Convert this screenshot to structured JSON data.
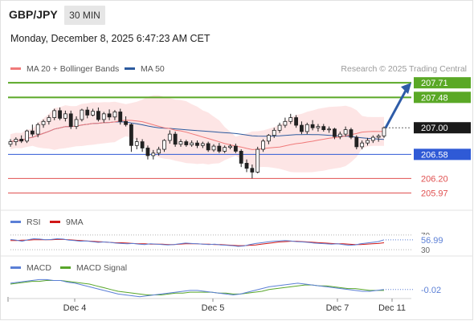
{
  "header": {
    "symbol": "GBP/JPY",
    "interval": "30 MIN",
    "timestamp": "Monday, December 8, 2025 6:47:23 AM CET"
  },
  "legend": {
    "ma20": "MA 20 + Bollinger Bands",
    "ma50": "MA 50",
    "credit": "Research © 2025 Trading Central",
    "rsi": "RSI",
    "rsi_ma": "9MA",
    "macd": "MACD",
    "macd_signal": "MACD Signal"
  },
  "colors": {
    "ma20": "#f07a7a",
    "ma50": "#2c5a9e",
    "bollinger_fill": "#fde2e2",
    "resistance": "#5aa826",
    "pivot": "#2f5ad6",
    "support": "#e05050",
    "arrow": "#2e5ca8",
    "rsi": "#5b7fd6",
    "rsi_ma": "#d01818",
    "macd": "#5b7fd6",
    "macd_signal": "#58a62a"
  },
  "chart_data": {
    "type": "candlestick",
    "x_ticks": [
      "Dec 4",
      "Dec 5",
      "Dec 7",
      "Dec 11"
    ],
    "ylim": [
      205.85,
      207.75
    ],
    "levels": [
      {
        "label": "207.71",
        "value": 207.71,
        "kind": "resistance"
      },
      {
        "label": "207.48",
        "value": 207.48,
        "kind": "resistance"
      },
      {
        "label": "207.00",
        "value": 207.0,
        "kind": "last"
      },
      {
        "label": "206.58",
        "value": 206.58,
        "kind": "pivot"
      },
      {
        "label": "206.20",
        "value": 206.2,
        "kind": "support"
      },
      {
        "label": "205.97",
        "value": 205.97,
        "kind": "support"
      }
    ],
    "candles": [
      [
        206.74,
        206.82,
        206.7,
        206.78
      ],
      [
        206.78,
        206.85,
        206.72,
        206.82
      ],
      [
        206.82,
        206.88,
        206.76,
        206.79
      ],
      [
        206.79,
        206.97,
        206.76,
        206.95
      ],
      [
        206.95,
        207.05,
        206.86,
        206.9
      ],
      [
        206.9,
        207.08,
        206.85,
        207.05
      ],
      [
        207.05,
        207.13,
        207.0,
        207.1
      ],
      [
        207.1,
        207.2,
        207.05,
        207.16
      ],
      [
        207.16,
        207.3,
        207.12,
        207.27
      ],
      [
        207.27,
        207.32,
        207.12,
        207.15
      ],
      [
        207.15,
        207.27,
        207.1,
        207.22
      ],
      [
        207.22,
        207.27,
        206.98,
        207.02
      ],
      [
        207.02,
        207.18,
        206.98,
        207.13
      ],
      [
        207.13,
        207.3,
        207.1,
        207.28
      ],
      [
        207.28,
        207.33,
        207.15,
        207.2
      ],
      [
        207.2,
        207.3,
        207.18,
        207.26
      ],
      [
        207.26,
        207.32,
        207.1,
        207.13
      ],
      [
        207.13,
        207.25,
        207.08,
        207.22
      ],
      [
        207.22,
        207.29,
        207.12,
        207.17
      ],
      [
        207.17,
        207.28,
        207.12,
        207.25
      ],
      [
        207.25,
        207.3,
        207.05,
        207.1
      ],
      [
        207.1,
        207.18,
        207.02,
        207.05
      ],
      [
        207.05,
        207.07,
        206.62,
        206.72
      ],
      [
        206.72,
        206.84,
        206.66,
        206.78
      ],
      [
        206.78,
        206.82,
        206.62,
        206.68
      ],
      [
        206.68,
        206.72,
        206.5,
        206.56
      ],
      [
        206.56,
        206.65,
        206.5,
        206.6
      ],
      [
        206.6,
        206.7,
        206.56,
        206.66
      ],
      [
        206.66,
        206.82,
        206.62,
        206.8
      ],
      [
        206.8,
        206.96,
        206.75,
        206.9
      ],
      [
        206.9,
        206.94,
        206.7,
        206.74
      ],
      [
        206.74,
        206.82,
        206.7,
        206.78
      ],
      [
        206.78,
        206.81,
        206.7,
        206.73
      ],
      [
        206.73,
        206.8,
        206.7,
        206.76
      ],
      [
        206.76,
        206.8,
        206.68,
        206.72
      ],
      [
        206.72,
        206.78,
        206.68,
        206.75
      ],
      [
        206.75,
        206.78,
        206.62,
        206.65
      ],
      [
        206.65,
        206.74,
        206.62,
        206.71
      ],
      [
        206.71,
        206.76,
        206.6,
        206.63
      ],
      [
        206.63,
        206.72,
        206.6,
        206.69
      ],
      [
        206.69,
        206.74,
        206.66,
        206.71
      ],
      [
        206.71,
        206.75,
        206.6,
        206.63
      ],
      [
        206.63,
        206.66,
        206.38,
        206.44
      ],
      [
        206.44,
        206.5,
        206.3,
        206.36
      ],
      [
        206.36,
        206.42,
        206.2,
        206.3
      ],
      [
        206.3,
        206.7,
        206.28,
        206.66
      ],
      [
        206.66,
        206.82,
        206.62,
        206.79
      ],
      [
        206.79,
        206.9,
        206.74,
        206.88
      ],
      [
        206.88,
        207.0,
        206.84,
        206.96
      ],
      [
        206.96,
        207.08,
        206.92,
        207.04
      ],
      [
        207.04,
        207.16,
        207.0,
        207.1
      ],
      [
        207.1,
        207.22,
        207.06,
        207.16
      ],
      [
        207.16,
        207.2,
        207.0,
        207.04
      ],
      [
        207.04,
        207.1,
        206.9,
        206.94
      ],
      [
        206.94,
        207.08,
        206.9,
        207.05
      ],
      [
        207.05,
        207.12,
        206.96,
        207.0
      ],
      [
        207.0,
        207.06,
        206.94,
        207.02
      ],
      [
        207.02,
        207.06,
        206.94,
        206.97
      ],
      [
        206.97,
        207.02,
        206.92,
        206.98
      ],
      [
        206.98,
        207.0,
        206.82,
        206.86
      ],
      [
        206.86,
        206.94,
        206.82,
        206.9
      ],
      [
        206.9,
        207.02,
        206.86,
        206.97
      ],
      [
        206.97,
        207.0,
        206.82,
        206.85
      ],
      [
        206.85,
        206.88,
        206.66,
        206.7
      ],
      [
        206.7,
        206.8,
        206.66,
        206.76
      ],
      [
        206.76,
        206.84,
        206.72,
        206.8
      ],
      [
        206.8,
        206.88,
        206.76,
        206.85
      ],
      [
        206.85,
        206.9,
        206.78,
        206.87
      ],
      [
        206.87,
        207.02,
        206.84,
        207.0
      ]
    ],
    "rsi_range": [
      30,
      70
    ],
    "rsi_labels": [
      "70",
      "30"
    ],
    "rsi_last": "56.99",
    "rsi": [
      58,
      56,
      53,
      57,
      60,
      59,
      57,
      58,
      60,
      59,
      56,
      55,
      53,
      54,
      52,
      50,
      51,
      50,
      48,
      47,
      46,
      47,
      45,
      44,
      46,
      45,
      44,
      43,
      44,
      46,
      48,
      47,
      46,
      45,
      44,
      45,
      43,
      42,
      41,
      39,
      40,
      44,
      47,
      49,
      51,
      53,
      54,
      55,
      54,
      52,
      51,
      50,
      48,
      47,
      46,
      45,
      46,
      44,
      42,
      43,
      46,
      48,
      50,
      52,
      57
    ],
    "rsi_ma": [
      55,
      55,
      56,
      56,
      57,
      57,
      57,
      57,
      58,
      58,
      57,
      56,
      55,
      54,
      53,
      52,
      51,
      50,
      49,
      49,
      48,
      47,
      46,
      46,
      45,
      45,
      45,
      44,
      44,
      45,
      46,
      46,
      46,
      45,
      45,
      44,
      44,
      43,
      42,
      41,
      41,
      42,
      43,
      45,
      47,
      49,
      51,
      52,
      53,
      53,
      52,
      51,
      50,
      49,
      48,
      47,
      46,
      46,
      45,
      44,
      44,
      45,
      46,
      47,
      49
    ],
    "macd_last": "-0.02",
    "macd": [
      0.05,
      0.06,
      0.07,
      0.08,
      0.09,
      0.09,
      0.08,
      0.08,
      0.06,
      0.05,
      0.03,
      0.01,
      -0.01,
      -0.03,
      -0.05,
      -0.07,
      -0.08,
      -0.09,
      -0.1,
      -0.09,
      -0.08,
      -0.07,
      -0.06,
      -0.05,
      -0.04,
      -0.03,
      -0.03,
      -0.04,
      -0.05,
      -0.06,
      -0.07,
      -0.08,
      -0.07,
      -0.05,
      -0.03,
      -0.01,
      0.01,
      0.02,
      0.03,
      0.04,
      0.05,
      0.04,
      0.03,
      0.02,
      0.01,
      0.0,
      -0.01,
      -0.02,
      -0.03,
      -0.04,
      -0.04,
      -0.03,
      -0.02
    ],
    "macd_signal": [
      0.04,
      0.05,
      0.06,
      0.07,
      0.07,
      0.08,
      0.08,
      0.08,
      0.07,
      0.06,
      0.05,
      0.04,
      0.02,
      0.0,
      -0.02,
      -0.04,
      -0.05,
      -0.06,
      -0.07,
      -0.08,
      -0.08,
      -0.08,
      -0.07,
      -0.06,
      -0.06,
      -0.05,
      -0.05,
      -0.05,
      -0.05,
      -0.06,
      -0.06,
      -0.07,
      -0.07,
      -0.06,
      -0.05,
      -0.04,
      -0.02,
      -0.01,
      0.0,
      0.01,
      0.02,
      0.03,
      0.03,
      0.02,
      0.02,
      0.01,
      0.0,
      -0.01,
      -0.01,
      -0.02,
      -0.03,
      -0.03,
      -0.03
    ]
  }
}
